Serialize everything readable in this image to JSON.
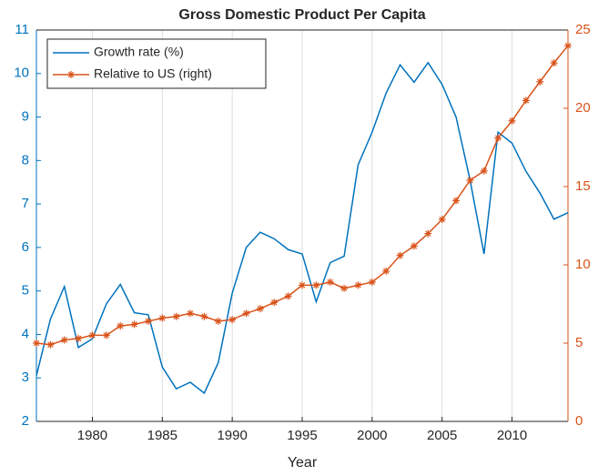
{
  "chart_data": {
    "type": "line",
    "title": "Gross Domestic Product Per Capita",
    "xlabel": "Year",
    "x": [
      1976,
      1977,
      1978,
      1979,
      1980,
      1981,
      1982,
      1983,
      1984,
      1985,
      1986,
      1987,
      1988,
      1989,
      1990,
      1991,
      1992,
      1993,
      1994,
      1995,
      1996,
      1997,
      1998,
      1999,
      2000,
      2001,
      2002,
      2003,
      2004,
      2005,
      2006,
      2007,
      2008,
      2009,
      2010,
      2011,
      2012,
      2013,
      2014
    ],
    "series": [
      {
        "name": "Growth rate (%)",
        "color": "#0072bd",
        "axis": "y",
        "marker": "none",
        "values": [
          3.05,
          4.35,
          5.1,
          3.7,
          3.9,
          4.7,
          5.15,
          4.5,
          4.45,
          3.25,
          2.75,
          2.9,
          2.65,
          3.35,
          4.95,
          6.0,
          6.35,
          6.2,
          5.95,
          5.85,
          4.75,
          5.65,
          5.8,
          7.9,
          8.65,
          9.55,
          10.2,
          9.8,
          10.25,
          9.75,
          9.0,
          7.55,
          5.85,
          8.65,
          8.4,
          7.75,
          7.25,
          6.65,
          6.8
        ]
      },
      {
        "name": "Relative to US (right)",
        "color": "#d95319",
        "axis": "y2",
        "marker": "asterisk",
        "values": [
          5.0,
          4.9,
          5.2,
          5.3,
          5.5,
          5.5,
          6.1,
          6.2,
          6.4,
          6.6,
          6.7,
          6.9,
          6.7,
          6.4,
          6.5,
          6.9,
          7.2,
          7.6,
          8.0,
          8.7,
          8.7,
          8.9,
          8.5,
          8.7,
          8.9,
          9.6,
          10.6,
          11.2,
          12.0,
          12.9,
          14.1,
          15.4,
          16.0,
          18.1,
          19.2,
          20.5,
          21.7,
          22.9,
          24.0
        ]
      }
    ],
    "xlim": [
      1976,
      2014
    ],
    "xticks": [
      1980,
      1985,
      1990,
      1995,
      2000,
      2005,
      2010
    ],
    "ylim": [
      2,
      11
    ],
    "yticks": [
      2,
      3,
      4,
      5,
      6,
      7,
      8,
      9,
      10,
      11
    ],
    "y2lim": [
      0,
      25
    ],
    "y2ticks": [
      0,
      5,
      10,
      15,
      20,
      25
    ],
    "grid": "x",
    "legend": "northwest"
  }
}
